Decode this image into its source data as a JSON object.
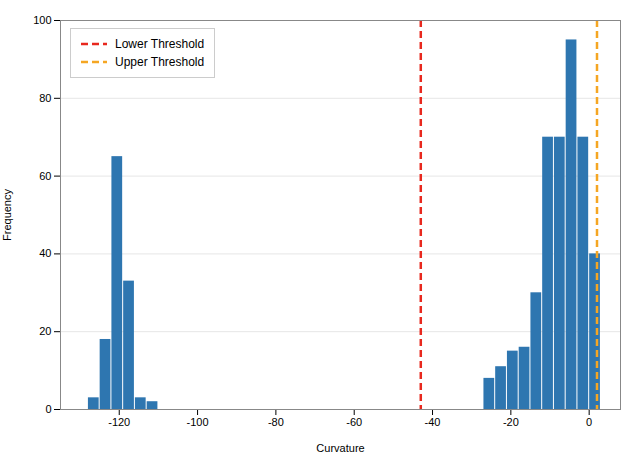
{
  "chart_data": {
    "type": "histogram",
    "xlabel": "Curvature",
    "ylabel": "Frequency",
    "series": [
      {
        "color": "#2e76b0",
        "bins": [
          -128,
          -125,
          -122,
          -119,
          -116,
          -113,
          -110
        ],
        "values": [
          3,
          18,
          65,
          33,
          3,
          2
        ]
      },
      {
        "color": "#2e76b0",
        "bins": [
          -27,
          -24,
          -21,
          -18,
          -15,
          -12,
          -9,
          -6,
          -3,
          0,
          3
        ],
        "values": [
          8,
          11,
          15,
          16,
          30,
          70,
          70,
          95,
          70,
          40
        ]
      }
    ],
    "vlines": [
      {
        "x": -43,
        "name": "Lower Threshold",
        "color": "#e8281e",
        "line_style": "dashed"
      },
      {
        "x": 2,
        "name": "Upper Threshold",
        "color": "#f5a623",
        "line_style": "dashed"
      }
    ],
    "xlim": [
      -135,
      8
    ],
    "ylim": [
      0,
      100
    ],
    "xticks": [
      -120,
      -100,
      -80,
      -60,
      -40,
      -20,
      0
    ],
    "yticks": [
      0,
      20,
      40,
      60,
      80,
      100
    ],
    "grid": "y",
    "legend": "upper left"
  }
}
